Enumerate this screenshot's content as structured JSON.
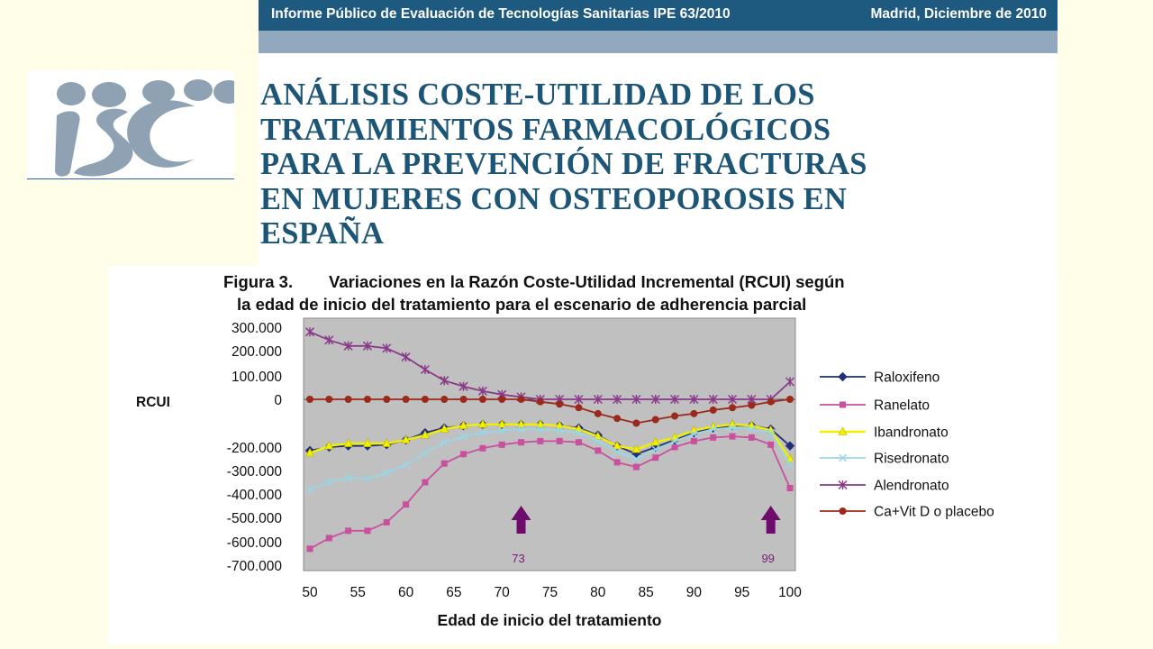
{
  "header": {
    "left_text": "Informe Público de Evaluación de Tecnologías Sanitarias IPE 63/2010",
    "right_text": "Madrid, Diciembre de 2010"
  },
  "logo": {
    "text": "isc"
  },
  "report": {
    "title": "ANÁLISIS COSTE-UTILIDAD DE LOS\nTRATAMIENTOS FARMACOLÓGICOS\nPARA LA PREVENCIÓN DE FRACTURAS\nEN MUJERES CON OSTEOPOROSIS EN\nESPAÑA"
  },
  "figure": {
    "label": "Figura 3.",
    "caption_line1": "Variaciones en la Razón Coste-Utilidad Incremental (RCUI) según",
    "caption_line2": "la edad de inicio del tratamiento para el escenario de adherencia parcial"
  },
  "colors": {
    "header": "#1e5a80",
    "title": "#1d5577",
    "plot_area": "#c0c0c0",
    "arrow": "#6e0c6e",
    "Raloxifeno": "#1f2f7a",
    "Ranelato": "#c8509e",
    "Ibandronato": "#f2ef00",
    "Risedronato": "#9ad6e6",
    "Alendronato": "#8a3a8a",
    "Ca+Vit D o placebo": "#9b2a1c"
  },
  "chart_data": {
    "type": "line",
    "title": "",
    "xlabel": "Edad de inicio del tratamiento",
    "ylabel": "RCUI",
    "xlim": [
      50,
      100
    ],
    "ylim": [
      -700000,
      300000
    ],
    "x_ticks": [
      50,
      55,
      60,
      65,
      70,
      75,
      80,
      85,
      90,
      95,
      100
    ],
    "x_tick_labels": [
      "50",
      "55",
      "60",
      "65",
      "70",
      "75",
      "80",
      "85",
      "90",
      "95",
      "100"
    ],
    "y_ticks": [
      300000,
      200000,
      100000,
      0,
      -200000,
      -300000,
      -400000,
      -500000,
      -600000,
      -700000
    ],
    "y_tick_labels": [
      "300.000",
      "200.000",
      "100.000",
      "0",
      "-200.000",
      "-300.000",
      "-400.000",
      "-500.000",
      "-600.000",
      "-700.000"
    ],
    "grid": false,
    "legend_position": "right",
    "x": [
      50,
      52,
      54,
      56,
      58,
      60,
      62,
      64,
      66,
      68,
      70,
      72,
      74,
      76,
      78,
      80,
      82,
      84,
      86,
      88,
      90,
      92,
      94,
      96,
      98,
      100
    ],
    "series": [
      {
        "name": "Raloxifeno",
        "marker": "diamond",
        "values": [
          -215000,
          -200000,
          -195000,
          -195000,
          -190000,
          -170000,
          -140000,
          -120000,
          -110000,
          -105000,
          -105000,
          -105000,
          -105000,
          -110000,
          -120000,
          -150000,
          -195000,
          -230000,
          -200000,
          -170000,
          -140000,
          -120000,
          -110000,
          -110000,
          -125000,
          -195000
        ]
      },
      {
        "name": "Ranelato",
        "marker": "square",
        "values": [
          -630000,
          -585000,
          -555000,
          -555000,
          -520000,
          -445000,
          -350000,
          -270000,
          -230000,
          -205000,
          -190000,
          -180000,
          -175000,
          -175000,
          -180000,
          -215000,
          -265000,
          -285000,
          -245000,
          -200000,
          -175000,
          -160000,
          -155000,
          -160000,
          -190000,
          -375000
        ]
      },
      {
        "name": "Ibandronato",
        "marker": "triangle",
        "values": [
          -225000,
          -195000,
          -185000,
          -185000,
          -185000,
          -170000,
          -150000,
          -125000,
          -110000,
          -105000,
          -105000,
          -105000,
          -105000,
          -110000,
          -125000,
          -155000,
          -195000,
          -210000,
          -180000,
          -160000,
          -130000,
          -115000,
          -105000,
          -110000,
          -130000,
          -250000
        ]
      },
      {
        "name": "Risedronato",
        "marker": "x",
        "values": [
          -380000,
          -350000,
          -330000,
          -335000,
          -310000,
          -275000,
          -225000,
          -180000,
          -155000,
          -140000,
          -130000,
          -125000,
          -125000,
          -130000,
          -140000,
          -175000,
          -220000,
          -250000,
          -210000,
          -175000,
          -145000,
          -125000,
          -120000,
          -125000,
          -140000,
          -275000
        ]
      },
      {
        "name": "Alendronato",
        "marker": "star",
        "values": [
          280000,
          245000,
          220000,
          220000,
          210000,
          175000,
          125000,
          80000,
          55000,
          35000,
          20000,
          10000,
          0,
          0,
          0,
          0,
          0,
          0,
          0,
          0,
          0,
          0,
          0,
          0,
          0,
          75000
        ]
      },
      {
        "name": "Ca+Vit D o placebo",
        "marker": "circle",
        "values": [
          0,
          0,
          0,
          0,
          0,
          0,
          0,
          0,
          0,
          0,
          0,
          0,
          -10000,
          -20000,
          -35000,
          -60000,
          -80000,
          -100000,
          -85000,
          -70000,
          -60000,
          -45000,
          -35000,
          -25000,
          -10000,
          0
        ]
      }
    ],
    "annotations": [
      {
        "text": "73",
        "x": 72
      },
      {
        "text": "99",
        "x": 98
      }
    ]
  }
}
